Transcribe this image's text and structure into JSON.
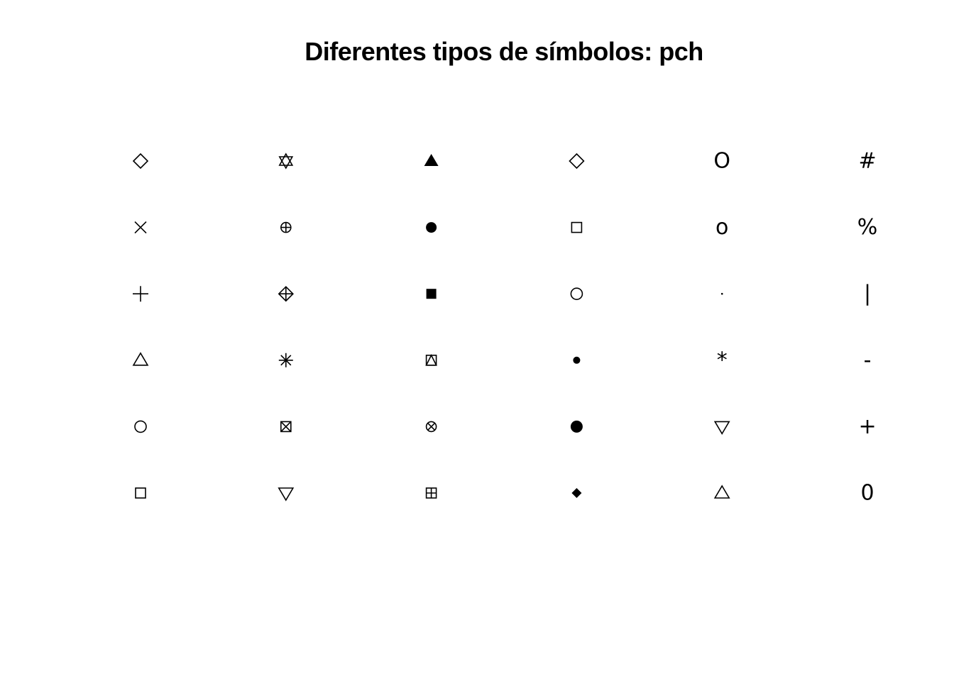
{
  "chart_data": {
    "type": "scatter",
    "title": "Diferentes tipos de símbolos: pch",
    "xlabel": "",
    "ylabel": "",
    "xlim": [
      0.7,
      6.3
    ],
    "ylim": [
      -1,
      7
    ],
    "axes_visible": false,
    "grid": false,
    "point_color": "#000000",
    "points": [
      {
        "x": 1,
        "y": 6,
        "pch": 5,
        "symbol": "diamond-open"
      },
      {
        "x": 1,
        "y": 5,
        "pch": 4,
        "symbol": "cross-x"
      },
      {
        "x": 1,
        "y": 4,
        "pch": 3,
        "symbol": "plus"
      },
      {
        "x": 1,
        "y": 3,
        "pch": 2,
        "symbol": "triangle-up-open"
      },
      {
        "x": 1,
        "y": 2,
        "pch": 1,
        "symbol": "circle-open"
      },
      {
        "x": 1,
        "y": 1,
        "pch": 0,
        "symbol": "square-open"
      },
      {
        "x": 2,
        "y": 6,
        "pch": 11,
        "symbol": "triangles-up-down"
      },
      {
        "x": 2,
        "y": 5,
        "pch": 10,
        "symbol": "circle-plus"
      },
      {
        "x": 2,
        "y": 4,
        "pch": 9,
        "symbol": "diamond-plus"
      },
      {
        "x": 2,
        "y": 3,
        "pch": 8,
        "symbol": "asterisk"
      },
      {
        "x": 2,
        "y": 2,
        "pch": 7,
        "symbol": "square-x"
      },
      {
        "x": 2,
        "y": 1,
        "pch": 6,
        "symbol": "triangle-down-open"
      },
      {
        "x": 3,
        "y": 6,
        "pch": 17,
        "symbol": "triangle-up-filled"
      },
      {
        "x": 3,
        "y": 5,
        "pch": 16,
        "symbol": "circle-filled"
      },
      {
        "x": 3,
        "y": 4,
        "pch": 15,
        "symbol": "square-filled"
      },
      {
        "x": 3,
        "y": 3,
        "pch": 14,
        "symbol": "square-triangle"
      },
      {
        "x": 3,
        "y": 2,
        "pch": 13,
        "symbol": "circle-x"
      },
      {
        "x": 3,
        "y": 1,
        "pch": 12,
        "symbol": "square-plus"
      },
      {
        "x": 4,
        "y": 6,
        "pch": 23,
        "symbol": "diamond-open"
      },
      {
        "x": 4,
        "y": 5,
        "pch": 22,
        "symbol": "square-open"
      },
      {
        "x": 4,
        "y": 4,
        "pch": 21,
        "symbol": "circle-open"
      },
      {
        "x": 4,
        "y": 3,
        "pch": 20,
        "symbol": "circle-small-filled"
      },
      {
        "x": 4,
        "y": 2,
        "pch": 19,
        "symbol": "circle-filled-large"
      },
      {
        "x": 4,
        "y": 1,
        "pch": 18,
        "symbol": "diamond-filled"
      },
      {
        "x": 5,
        "y": 6,
        "pch": "0",
        "symbol": "text",
        "text": "O"
      },
      {
        "x": 5,
        "y": 5,
        "pch": "o",
        "symbol": "text",
        "text": "o"
      },
      {
        "x": 5,
        "y": 4,
        "pch": ".",
        "symbol": "dot"
      },
      {
        "x": 5,
        "y": 3,
        "pch": "*",
        "symbol": "text",
        "text": "*"
      },
      {
        "x": 5,
        "y": 2,
        "pch": 25,
        "symbol": "triangle-down-open"
      },
      {
        "x": 5,
        "y": 1,
        "pch": 24,
        "symbol": "triangle-up-open"
      },
      {
        "x": 6,
        "y": 6,
        "pch": "#",
        "symbol": "text",
        "text": "#"
      },
      {
        "x": 6,
        "y": 5,
        "pch": "%",
        "symbol": "text",
        "text": "%"
      },
      {
        "x": 6,
        "y": 4,
        "pch": "|",
        "symbol": "text",
        "text": "|"
      },
      {
        "x": 6,
        "y": 3,
        "pch": "-",
        "symbol": "text",
        "text": "-"
      },
      {
        "x": 6,
        "y": 2,
        "pch": "+",
        "symbol": "text",
        "text": "+"
      },
      {
        "x": 6,
        "y": 1,
        "pch": "0",
        "symbol": "text",
        "text": "0"
      }
    ]
  }
}
